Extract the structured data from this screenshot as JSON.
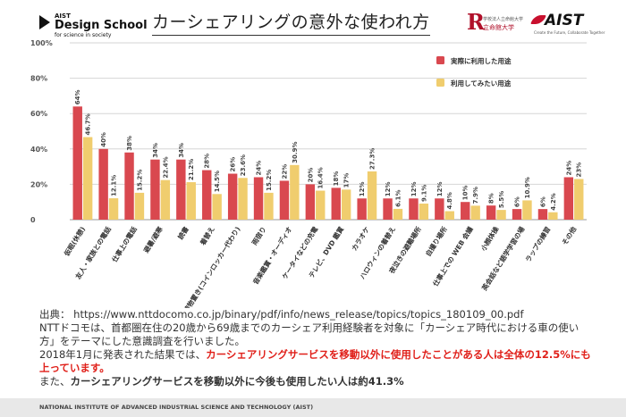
{
  "header": {
    "logo_line1": "AIST",
    "logo_line2": "Design School",
    "logo_line3": "for science in society",
    "title": "カーシェアリングの意外な使われ方",
    "rits_small": "学校法人立命館大学",
    "rits_name": "立命館大学",
    "aist_name": "AIST",
    "aist_tagline": "Create the Future, Collaborate Together"
  },
  "colors": {
    "actual": "#d9484f",
    "want": "#f0cd6e",
    "grid": "#d6d6d6"
  },
  "chart_data": {
    "type": "bar",
    "ylim": [
      0,
      100
    ],
    "yticks": [
      "0",
      "20%",
      "40%",
      "60%",
      "80%",
      "100%"
    ],
    "grid": true,
    "legend_placement": "top-right",
    "categories": [
      "仮眠(休憩)",
      "友人・家族との電話",
      "仕事上の電話",
      "避暑/避寒",
      "読書",
      "着替え",
      "荷物置き(コインロッカー代わり)",
      "雨宿り",
      "音楽鑑賞・オーディオ",
      "ケータイなどの充電",
      "テレビ、DVD 鑑賞",
      "カラオケ",
      "ハロウィンの着替え",
      "夜泣きの避難場所",
      "自撮り場所",
      "仕事上での WEB 会議",
      "小顔体操",
      "英会話など語学学習の場",
      "ラップの練習",
      "その他"
    ],
    "series": [
      {
        "name": "実際に利用した用途",
        "values": [
          64,
          40,
          38,
          34,
          34,
          28,
          26,
          24,
          22,
          20,
          18,
          12,
          12,
          12,
          12,
          10,
          8,
          6,
          6,
          24
        ],
        "labels": [
          "64%",
          "40%",
          "38%",
          "34%",
          "34%",
          "28%",
          "26%",
          "24%",
          "22%",
          "20%",
          "18%",
          "12%",
          "12%",
          "12%",
          "12%",
          "10%",
          "8%",
          "6%",
          "6%",
          "24%"
        ]
      },
      {
        "name": "利用してみたい用途",
        "values": [
          46.7,
          12.1,
          15.2,
          22.4,
          21.2,
          14.5,
          23.6,
          15.2,
          30.9,
          16.4,
          17,
          27.3,
          6.1,
          9.1,
          4.8,
          7.9,
          5.5,
          10.9,
          4.2,
          23
        ],
        "labels": [
          "46.7%",
          "12.1%",
          "15.2%",
          "22.4%",
          "21.2%",
          "14.5%",
          "23.6%",
          "15.2%",
          "30.9%",
          "16.4%",
          "17%",
          "27.3%",
          "6.1%",
          "9.1%",
          "4.8%",
          "7.9%",
          "5.5%",
          "10.9%",
          "4.2%",
          "23%"
        ]
      }
    ]
  },
  "text": {
    "source": "出典： https://www.nttdocomo.co.jp/binary/pdf/info/news_release/topics/topics_180109_00.pdf",
    "p1": "NTTドコモは、首都圏在住の20歳から69歳までのカーシェア利用経験者を対象に「カーシェア時代における車の使い方」をテーマにした意識調査を行いました。",
    "p2_prefix": "2018年1月に発表された結果では、",
    "p2_highlight": "カーシェアリングサービスを移動以外に使用したことがある人は全体の12.5%にも上っています。",
    "p3_prefix": "また、",
    "p3_bold": "カーシェアリングサービスを移動以外に今後も使用したい人は約41.3%"
  },
  "footer": "NATIONAL INSTITUTE OF ADVANCED INDUSTRIAL SCIENCE AND TECHNOLOGY (AIST)"
}
